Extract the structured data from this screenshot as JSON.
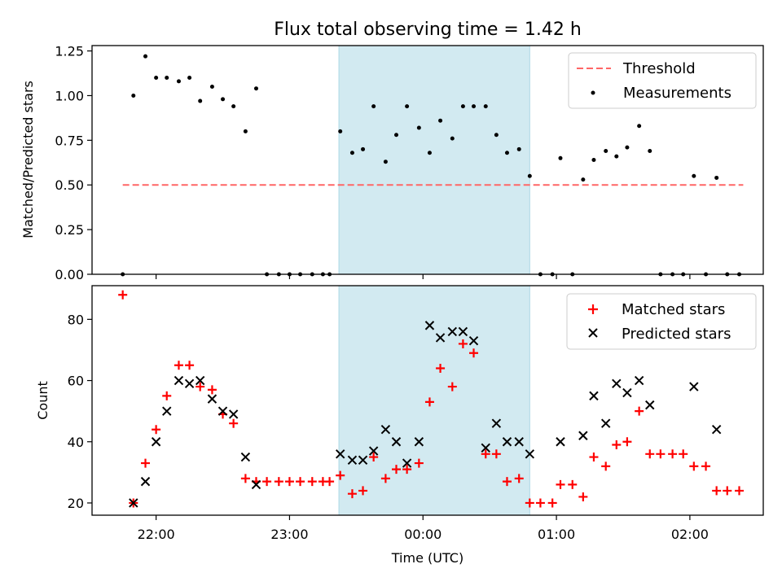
{
  "title": "Flux total observing time = 1.42 h",
  "xlabel": "Time (UTC)",
  "x_ticks": [
    "22:00",
    "23:00",
    "00:00",
    "01:00",
    "02:00"
  ],
  "x_range_hours": [
    21.52,
    26.55
  ],
  "shaded_interval_hours": [
    23.37,
    24.8
  ],
  "colors": {
    "shade": "#add8e6",
    "matched": "#ff0000",
    "predicted": "#000000",
    "threshold": "#ff6666",
    "measurement": "#000000"
  },
  "chart_data": [
    {
      "type": "scatter",
      "ylabel": "Matched/Predicted stars",
      "ylim": [
        0,
        1.28
      ],
      "y_ticks": [
        "0.00",
        "0.25",
        "0.50",
        "0.75",
        "1.00",
        "1.25"
      ],
      "legend_position": "top-right",
      "legend": [
        "Threshold",
        "Measurements"
      ],
      "threshold": {
        "name": "Threshold",
        "value": 0.5,
        "x_range": [
          21.75,
          26.4
        ]
      },
      "series": [
        {
          "name": "Measurements",
          "x": [
            21.75,
            21.83,
            21.92,
            22.0,
            22.08,
            22.17,
            22.25,
            22.33,
            22.42,
            22.5,
            22.58,
            22.67,
            22.75,
            22.83,
            22.92,
            23.0,
            23.08,
            23.17,
            23.25,
            23.3,
            23.38,
            23.47,
            23.55,
            23.63,
            23.72,
            23.8,
            23.88,
            23.97,
            24.05,
            24.13,
            24.22,
            24.3,
            24.38,
            24.47,
            24.55,
            24.63,
            24.72,
            24.8,
            24.88,
            24.97,
            25.03,
            25.12,
            25.2,
            25.28,
            25.37,
            25.45,
            25.53,
            25.62,
            25.7,
            25.78,
            25.87,
            25.95,
            26.03,
            26.12,
            26.2,
            26.28,
            26.37
          ],
          "y": [
            0.0,
            1.0,
            1.22,
            1.1,
            1.1,
            1.08,
            1.1,
            0.97,
            1.05,
            0.98,
            0.94,
            0.8,
            1.04,
            0.0,
            0.0,
            0.0,
            0.0,
            0.0,
            0.0,
            0.0,
            0.8,
            0.68,
            0.7,
            0.94,
            0.63,
            0.78,
            0.94,
            0.82,
            0.68,
            0.86,
            0.76,
            0.94,
            0.94,
            0.94,
            0.78,
            0.68,
            0.7,
            0.55,
            0.0,
            0.0,
            0.65,
            0.0,
            0.53,
            0.64,
            0.69,
            0.66,
            0.71,
            0.83,
            0.69,
            0.0,
            0.0,
            0.0,
            0.55,
            0.0,
            0.54,
            0.0,
            0.0
          ]
        }
      ]
    },
    {
      "type": "scatter",
      "ylabel": "Count",
      "ylim": [
        16,
        91
      ],
      "y_ticks": [
        "20",
        "40",
        "60",
        "80"
      ],
      "legend_position": "top-right",
      "legend": [
        "Matched stars",
        "Predicted stars"
      ],
      "series": [
        {
          "name": "Matched stars",
          "marker": "plus",
          "x": [
            21.75,
            21.83,
            21.92,
            22.0,
            22.08,
            22.17,
            22.25,
            22.33,
            22.42,
            22.5,
            22.58,
            22.67,
            22.75,
            22.83,
            22.92,
            23.0,
            23.08,
            23.17,
            23.25,
            23.3,
            23.38,
            23.47,
            23.55,
            23.63,
            23.72,
            23.8,
            23.88,
            23.97,
            24.05,
            24.13,
            24.22,
            24.3,
            24.38,
            24.47,
            24.55,
            24.63,
            24.72,
            24.8,
            24.88,
            24.97,
            25.03,
            25.12,
            25.2,
            25.28,
            25.37,
            25.45,
            25.53,
            25.62,
            25.7,
            25.78,
            25.87,
            25.95,
            26.03,
            26.12,
            26.2,
            26.28,
            26.37
          ],
          "y": [
            88,
            20,
            33,
            44,
            55,
            65,
            65,
            58,
            57,
            49,
            46,
            28,
            27,
            27,
            27,
            27,
            27,
            27,
            27,
            27,
            29,
            23,
            24,
            35,
            28,
            31,
            31,
            33,
            53,
            64,
            58,
            72,
            69,
            36,
            36,
            27,
            28,
            20,
            20,
            20,
            26,
            26,
            22,
            35,
            32,
            39,
            40,
            50,
            36,
            36,
            36,
            36,
            32,
            32,
            24,
            24,
            24
          ]
        },
        {
          "name": "Predicted stars",
          "marker": "x",
          "x": [
            21.83,
            21.92,
            22.0,
            22.08,
            22.17,
            22.25,
            22.33,
            22.42,
            22.5,
            22.58,
            22.67,
            22.75,
            23.38,
            23.47,
            23.55,
            23.63,
            23.72,
            23.8,
            23.88,
            23.97,
            24.05,
            24.13,
            24.22,
            24.3,
            24.38,
            24.47,
            24.55,
            24.63,
            24.72,
            24.8,
            25.03,
            25.2,
            25.28,
            25.37,
            25.45,
            25.53,
            25.62,
            25.7,
            26.03,
            26.2
          ],
          "y": [
            20,
            27,
            40,
            50,
            60,
            59,
            60,
            54,
            50,
            49,
            35,
            26,
            36,
            34,
            34,
            37,
            44,
            40,
            33,
            40,
            78,
            74,
            76,
            76,
            73,
            38,
            46,
            40,
            40,
            36,
            40,
            42,
            55,
            46,
            59,
            56,
            60,
            52,
            58,
            44
          ]
        }
      ]
    }
  ]
}
